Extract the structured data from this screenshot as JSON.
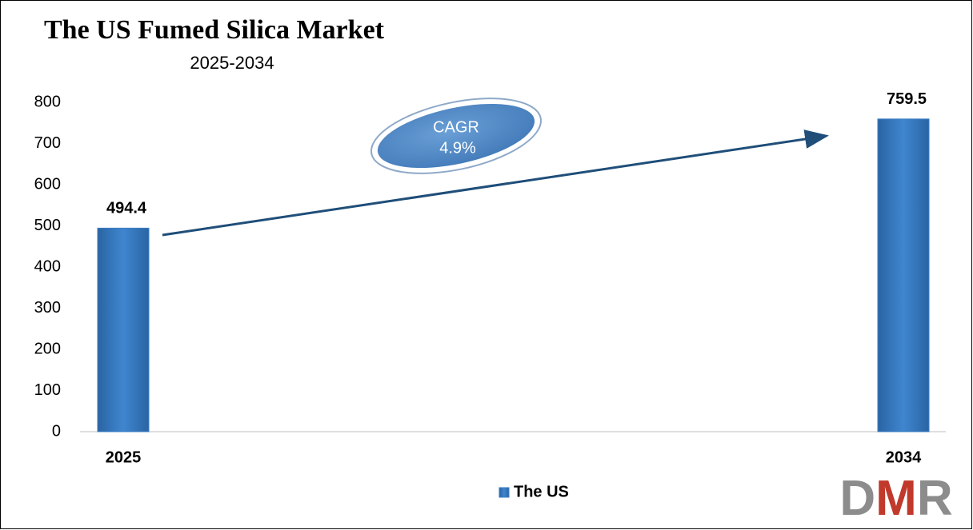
{
  "chart_data": {
    "type": "bar",
    "title": "The US Fumed Silica Market",
    "subtitle": "2025-2034",
    "categories": [
      "2025",
      "2034"
    ],
    "series": [
      {
        "name": "The US",
        "color": "#3a7dc4",
        "values": [
          494.4,
          759.5
        ]
      }
    ],
    "ylim": [
      0,
      800
    ],
    "yticks": [
      0,
      100,
      200,
      300,
      400,
      500,
      600,
      700,
      800
    ],
    "grid": false,
    "legend": "bottom",
    "annotations": [
      "CAGR",
      "4.9%"
    ],
    "logo": [
      "D",
      "M",
      "R"
    ]
  }
}
